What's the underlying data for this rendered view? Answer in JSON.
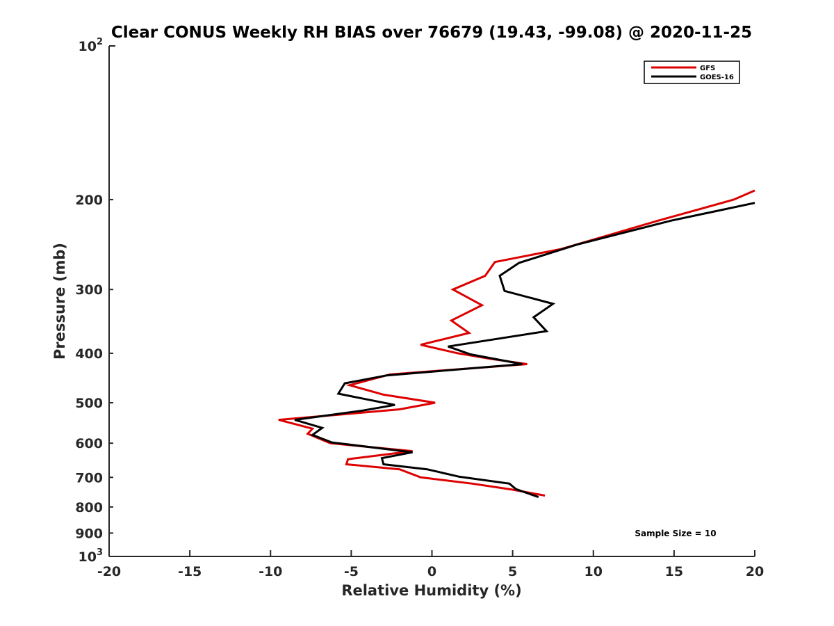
{
  "chart_data": {
    "type": "line",
    "title": "Clear CONUS Weekly RH BIAS over 76679 (19.43, -99.08) @ 2020-11-25",
    "xlabel": "Relative Humidity (%)",
    "ylabel": "Pressure (mb)",
    "xlim": [
      -20,
      20
    ],
    "ylim": [
      100,
      1000
    ],
    "yscale": "log",
    "y_reversed": true,
    "xticks": [
      -20,
      -15,
      -10,
      -5,
      0,
      5,
      10,
      15,
      20
    ],
    "xtick_labels": [
      "-20",
      "-15",
      "-10",
      "-5",
      "0",
      "5",
      "10",
      "15",
      "20"
    ],
    "yticks": [
      200,
      300,
      400,
      500,
      600,
      700,
      800,
      900
    ],
    "ytick_labels": [
      "200",
      "300",
      "400",
      "500",
      "600",
      "700",
      "800",
      "900"
    ],
    "ytick_top": {
      "base": "10",
      "exp": "2"
    },
    "ytick_bottom": {
      "base": "10",
      "exp": "3"
    },
    "grid": false,
    "legend_position": "top-right",
    "annotation": "Sample Size = 10",
    "series": [
      {
        "name": "GFS",
        "color": "#dd0000",
        "points": [
          {
            "x": 20.0,
            "y": 192
          },
          {
            "x": 18.7,
            "y": 200
          },
          {
            "x": 14.0,
            "y": 220
          },
          {
            "x": 8.0,
            "y": 250
          },
          {
            "x": 3.9,
            "y": 265
          },
          {
            "x": 3.3,
            "y": 282
          },
          {
            "x": 1.3,
            "y": 300
          },
          {
            "x": 3.1,
            "y": 322
          },
          {
            "x": 1.2,
            "y": 345
          },
          {
            "x": 2.3,
            "y": 365
          },
          {
            "x": -0.7,
            "y": 385
          },
          {
            "x": 1.6,
            "y": 400
          },
          {
            "x": 3.6,
            "y": 410
          },
          {
            "x": 5.9,
            "y": 420
          },
          {
            "x": -2.6,
            "y": 440
          },
          {
            "x": -5.1,
            "y": 462
          },
          {
            "x": -3.0,
            "y": 482
          },
          {
            "x": 0.2,
            "y": 500
          },
          {
            "x": -2.0,
            "y": 515
          },
          {
            "x": -5.0,
            "y": 525
          },
          {
            "x": -9.5,
            "y": 540
          },
          {
            "x": -7.4,
            "y": 562
          },
          {
            "x": -7.7,
            "y": 575
          },
          {
            "x": -6.3,
            "y": 600
          },
          {
            "x": -1.2,
            "y": 622
          },
          {
            "x": -5.2,
            "y": 645
          },
          {
            "x": -5.3,
            "y": 660
          },
          {
            "x": -2.0,
            "y": 675
          },
          {
            "x": -0.7,
            "y": 700
          },
          {
            "x": 2.5,
            "y": 720
          },
          {
            "x": 5.0,
            "y": 740
          },
          {
            "x": 7.0,
            "y": 760
          }
        ]
      },
      {
        "name": "GOES-16",
        "color": "#000000",
        "points": [
          {
            "x": 20.0,
            "y": 203
          },
          {
            "x": 14.8,
            "y": 220
          },
          {
            "x": 9.0,
            "y": 245
          },
          {
            "x": 5.4,
            "y": 266
          },
          {
            "x": 4.2,
            "y": 282
          },
          {
            "x": 4.5,
            "y": 302
          },
          {
            "x": 7.5,
            "y": 320
          },
          {
            "x": 6.3,
            "y": 340
          },
          {
            "x": 7.1,
            "y": 362
          },
          {
            "x": 1.0,
            "y": 388
          },
          {
            "x": 2.4,
            "y": 402
          },
          {
            "x": 5.6,
            "y": 420
          },
          {
            "x": -2.8,
            "y": 442
          },
          {
            "x": -5.4,
            "y": 458
          },
          {
            "x": -5.8,
            "y": 480
          },
          {
            "x": -2.3,
            "y": 505
          },
          {
            "x": -4.3,
            "y": 518
          },
          {
            "x": -8.5,
            "y": 540
          },
          {
            "x": -6.8,
            "y": 560
          },
          {
            "x": -7.4,
            "y": 578
          },
          {
            "x": -6.2,
            "y": 598
          },
          {
            "x": -1.2,
            "y": 625
          },
          {
            "x": -3.1,
            "y": 642
          },
          {
            "x": -3.0,
            "y": 660
          },
          {
            "x": -0.3,
            "y": 675
          },
          {
            "x": 1.7,
            "y": 698
          },
          {
            "x": 4.8,
            "y": 720
          },
          {
            "x": 5.2,
            "y": 738
          },
          {
            "x": 6.6,
            "y": 765
          }
        ]
      }
    ]
  }
}
